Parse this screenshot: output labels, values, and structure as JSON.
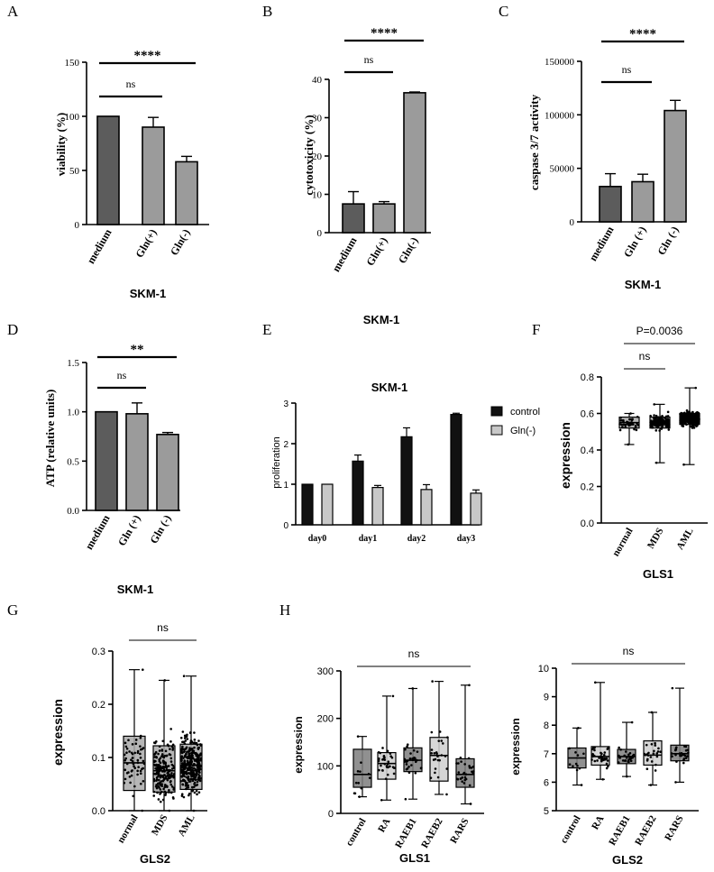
{
  "colors": {
    "dark": "#5c5c5c",
    "mid": "#9b9b9b",
    "light": "#c8c8c8",
    "black": "#111111",
    "box_dark": "#7c7c7c",
    "box_light": "#cfcfcf"
  },
  "chart_data": [
    {
      "type": "bar",
      "panel": "A",
      "categories": [
        "medium",
        "Gln(+)",
        "Gln(-)"
      ],
      "values": [
        100,
        90,
        58
      ],
      "errors": [
        0,
        9,
        5
      ],
      "ylabel": "viability (%)",
      "xlabel": "SKM-1",
      "ylim": [
        0,
        150
      ],
      "yticks": [
        0,
        50,
        100,
        150
      ],
      "brackets": [
        {
          "from": 0,
          "to": 1,
          "label": "ns"
        },
        {
          "from": 0,
          "to": 2,
          "label": "****"
        }
      ]
    },
    {
      "type": "bar",
      "panel": "B",
      "categories": [
        "medium",
        "Gln(+)",
        "Gln(-)"
      ],
      "values": [
        7.5,
        7.5,
        36.5
      ],
      "errors": [
        3.2,
        0.6,
        0.2
      ],
      "ylabel": "cytotoxicity (%)",
      "xlabel": "SKM-1",
      "ylim": [
        0,
        40
      ],
      "yticks": [
        0,
        10,
        20,
        30,
        40
      ],
      "brackets": [
        {
          "from": 0,
          "to": 1,
          "label": "ns"
        },
        {
          "from": 0,
          "to": 2,
          "label": "****"
        }
      ]
    },
    {
      "type": "bar",
      "panel": "C",
      "categories": [
        "medium",
        "Gln (+)",
        "Gln (-)"
      ],
      "values": [
        33000,
        37500,
        104000
      ],
      "errors": [
        12000,
        7000,
        9500
      ],
      "ylabel": "caspase 3/7 activity",
      "xlabel": "SKM-1",
      "ylim": [
        0,
        150000
      ],
      "yticks": [
        0,
        50000,
        100000,
        150000
      ],
      "brackets": [
        {
          "from": 0,
          "to": 1,
          "label": "ns"
        },
        {
          "from": 0,
          "to": 2,
          "label": "****"
        }
      ]
    },
    {
      "type": "bar",
      "panel": "D",
      "categories": [
        "medium",
        "Gln (+)",
        "Gln (-)"
      ],
      "values": [
        1.0,
        0.98,
        0.77
      ],
      "errors": [
        0,
        0.11,
        0.02
      ],
      "ylabel": "ATP (relative units)",
      "xlabel": "SKM-1",
      "ylim": [
        0,
        1.5
      ],
      "yticks": [
        0.0,
        0.5,
        1.0,
        1.5
      ],
      "ytick_labels": [
        "0.0",
        "0.5",
        "1.0",
        "1.5"
      ],
      "brackets": [
        {
          "from": 0,
          "to": 1,
          "label": "ns"
        },
        {
          "from": 0,
          "to": 2,
          "label": "**"
        }
      ]
    },
    {
      "type": "bar",
      "panel": "E",
      "title": "SKM-1",
      "categories": [
        "day0",
        "day1",
        "day2",
        "day3"
      ],
      "series": [
        {
          "name": "control",
          "values": [
            1.0,
            1.57,
            2.17,
            2.72
          ],
          "errors": [
            0,
            0.15,
            0.22,
            0.03
          ]
        },
        {
          "name": "Gln(-)",
          "values": [
            1.0,
            0.92,
            0.87,
            0.78
          ],
          "errors": [
            0,
            0.05,
            0.12,
            0.08
          ]
        }
      ],
      "ylabel": "proliferation",
      "ylim": [
        0,
        3
      ],
      "yticks": [
        0,
        1,
        2,
        3
      ],
      "legend": "top-right"
    },
    {
      "type": "box",
      "panel": "F",
      "categories": [
        "normal",
        "MDS",
        "AML"
      ],
      "boxes": [
        {
          "min": 0.43,
          "q1": 0.52,
          "median": 0.55,
          "q3": 0.58,
          "max": 0.6,
          "n": 40
        },
        {
          "min": 0.33,
          "q1": 0.52,
          "median": 0.55,
          "q3": 0.58,
          "max": 0.65,
          "n": 160
        },
        {
          "min": 0.32,
          "q1": 0.54,
          "median": 0.57,
          "q3": 0.6,
          "max": 0.74,
          "n": 300
        }
      ],
      "ylabel": "expression",
      "xlabel": "GLS1",
      "ylim": [
        0,
        0.8
      ],
      "yticks": [
        0.0,
        0.2,
        0.4,
        0.6,
        0.8
      ],
      "ytick_labels": [
        "0.0",
        "0.2",
        "0.4",
        "0.6",
        "0.8"
      ],
      "brackets": [
        {
          "from": 0,
          "to": 1,
          "label": "ns"
        },
        {
          "from": 0,
          "to": 2,
          "label": "P=0.0036"
        }
      ]
    },
    {
      "type": "box",
      "panel": "G",
      "categories": [
        "normal",
        "MDS",
        "AML"
      ],
      "boxes": [
        {
          "min": 0.0,
          "q1": 0.038,
          "median": 0.09,
          "q3": 0.14,
          "max": 0.265,
          "n": 60
        },
        {
          "min": 0.0,
          "q1": 0.035,
          "median": 0.075,
          "q3": 0.122,
          "max": 0.245,
          "n": 200
        },
        {
          "min": 0.0,
          "q1": 0.04,
          "median": 0.085,
          "q3": 0.125,
          "max": 0.253,
          "n": 320
        }
      ],
      "ylabel": "expression",
      "xlabel": "GLS2",
      "ylim": [
        0,
        0.3
      ],
      "yticks": [
        0.0,
        0.1,
        0.2,
        0.3
      ],
      "ytick_labels": [
        "0.0",
        "0.1",
        "0.2",
        "0.3"
      ],
      "brackets": [
        {
          "from": 0,
          "to": 2,
          "label": "ns"
        }
      ]
    },
    {
      "type": "box",
      "panel": "H1",
      "categories": [
        "control",
        "RA",
        "RAEB1",
        "RAEB2",
        "RARS"
      ],
      "boxes": [
        {
          "min": 35,
          "q1": 55,
          "median": 82,
          "q3": 135,
          "max": 162,
          "n": 12
        },
        {
          "min": 28,
          "q1": 72,
          "median": 105,
          "q3": 128,
          "max": 247,
          "n": 35
        },
        {
          "min": 30,
          "q1": 88,
          "median": 112,
          "q3": 138,
          "max": 263,
          "n": 30
        },
        {
          "min": 40,
          "q1": 68,
          "median": 122,
          "q3": 160,
          "max": 278,
          "n": 25
        },
        {
          "min": 20,
          "q1": 55,
          "median": 82,
          "q3": 115,
          "max": 270,
          "n": 30
        }
      ],
      "ylabel": "expression",
      "xlabel": "GLS1",
      "ylim": [
        0,
        300
      ],
      "yticks": [
        0,
        100,
        200,
        300
      ],
      "brackets": [
        {
          "from": 0,
          "to": 4,
          "label": "ns"
        }
      ]
    },
    {
      "type": "box",
      "panel": "H2",
      "categories": [
        "control",
        "RA",
        "RAEB1",
        "RAEB2",
        "RARS"
      ],
      "boxes": [
        {
          "min": 5.9,
          "q1": 6.5,
          "median": 6.85,
          "q3": 7.2,
          "max": 7.9,
          "n": 12
        },
        {
          "min": 6.1,
          "q1": 6.6,
          "median": 6.9,
          "q3": 7.25,
          "max": 9.5,
          "n": 35
        },
        {
          "min": 6.2,
          "q1": 6.65,
          "median": 6.9,
          "q3": 7.15,
          "max": 8.1,
          "n": 30
        },
        {
          "min": 5.9,
          "q1": 6.6,
          "median": 6.95,
          "q3": 7.45,
          "max": 8.45,
          "n": 25
        },
        {
          "min": 6.0,
          "q1": 6.75,
          "median": 7.0,
          "q3": 7.3,
          "max": 9.3,
          "n": 30
        }
      ],
      "ylabel": "expression",
      "xlabel": "GLS2",
      "ylim": [
        5,
        10
      ],
      "yticks": [
        5,
        6,
        7,
        8,
        9,
        10
      ],
      "brackets": [
        {
          "from": 0,
          "to": 4,
          "label": "ns"
        }
      ]
    }
  ],
  "panel_labels": [
    "A",
    "B",
    "C",
    "D",
    "E",
    "F",
    "G",
    "H"
  ]
}
